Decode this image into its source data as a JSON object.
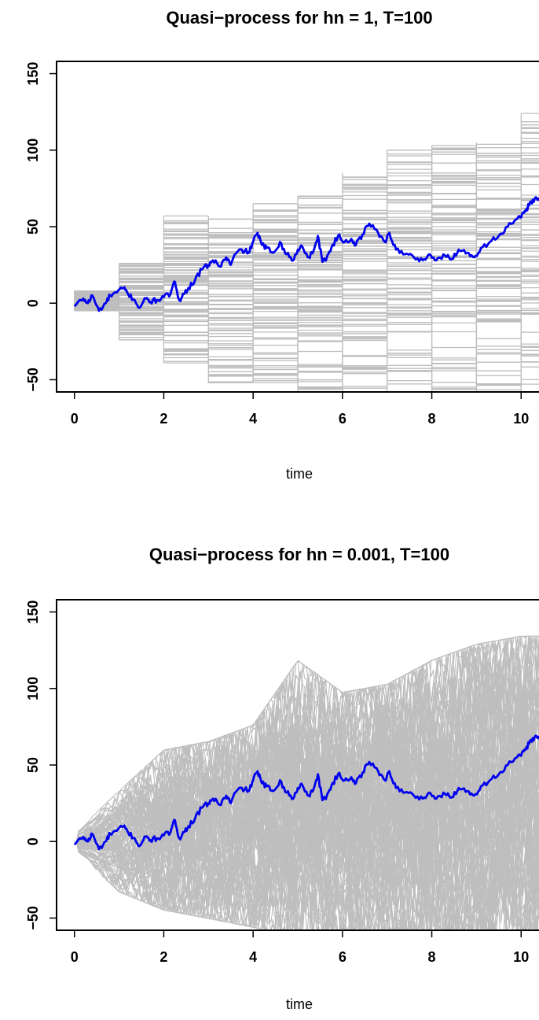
{
  "chart_data": [
    {
      "type": "line",
      "title": "Quasi−process for hn = 1, T=100",
      "xlabel": "time",
      "ylabel": "",
      "xlim": [
        -0.4,
        10.4
      ],
      "ylim": [
        -58,
        158
      ],
      "xticks": [
        "0",
        "2",
        "4",
        "6",
        "8",
        "10"
      ],
      "yticks": [
        "−50",
        "0",
        "50",
        "100",
        "150"
      ],
      "grid": false,
      "background_paths": {
        "name": "",
        "color": "#bebebe",
        "style": "step",
        "count": 100,
        "step_width": 1,
        "envelope_by_step": [
          {
            "t": 0,
            "min": -5,
            "max": 8
          },
          {
            "t": 1,
            "min": -24,
            "max": 26
          },
          {
            "t": 2,
            "min": -39,
            "max": 57
          },
          {
            "t": 3,
            "min": -52,
            "max": 55
          },
          {
            "t": 4,
            "min": -52,
            "max": 65
          },
          {
            "t": 5,
            "min": -60,
            "max": 70
          },
          {
            "t": 6,
            "min": -60,
            "max": 85
          },
          {
            "t": 7,
            "min": -60,
            "max": 100
          },
          {
            "t": 8,
            "min": -60,
            "max": 103
          },
          {
            "t": 9,
            "min": -60,
            "max": 105
          },
          {
            "t": 10,
            "min": -60,
            "max": 124
          }
        ]
      },
      "highlight_path": {
        "name": "",
        "color": "#0000ee",
        "x": [
          0,
          0.2,
          0.3,
          0.4,
          0.55,
          0.7,
          0.8,
          0.95,
          1.1,
          1.2,
          1.35,
          1.45,
          1.6,
          1.7,
          1.85,
          2.0,
          2.15,
          2.25,
          2.35,
          2.45,
          2.55,
          2.7,
          2.85,
          3.0,
          3.1,
          3.25,
          3.4,
          3.5,
          3.6,
          3.75,
          3.9,
          4.0,
          4.1,
          4.2,
          4.3,
          4.45,
          4.6,
          4.75,
          4.9,
          5.0,
          5.1,
          5.25,
          5.35,
          5.45,
          5.55,
          5.65,
          5.75,
          5.9,
          6.05,
          6.2,
          6.3,
          6.45,
          6.6,
          6.8,
          6.95,
          7.05,
          7.2,
          7.4,
          7.6,
          7.8,
          7.95,
          8.1,
          8.3,
          8.45,
          8.6,
          8.8,
          8.95,
          9.1,
          9.3,
          9.5,
          9.7,
          9.9,
          10.0,
          10.1,
          10.2,
          10.3,
          10.4
        ],
        "y": [
          -2,
          3,
          0,
          5,
          -5,
          0,
          5,
          7,
          10,
          6,
          2,
          -3,
          3,
          1,
          2,
          4,
          6,
          14,
          2,
          6,
          10,
          15,
          22,
          25,
          28,
          24,
          30,
          25,
          32,
          35,
          33,
          40,
          46,
          38,
          36,
          33,
          40,
          32,
          28,
          35,
          37,
          30,
          34,
          44,
          27,
          30,
          36,
          44,
          40,
          42,
          38,
          45,
          52,
          46,
          40,
          46,
          35,
          32,
          30,
          28,
          32,
          28,
          31,
          29,
          35,
          33,
          30,
          36,
          40,
          44,
          50,
          55,
          56,
          60,
          66,
          68,
          69
        ]
      }
    },
    {
      "type": "line",
      "title": "Quasi−process for hn = 0.001, T=100",
      "xlabel": "time",
      "ylabel": "",
      "xlim": [
        -0.4,
        10.4
      ],
      "ylim": [
        -58,
        158
      ],
      "xticks": [
        "0",
        "2",
        "4",
        "6",
        "8",
        "10"
      ],
      "yticks": [
        "−50",
        "0",
        "50",
        "100",
        "150"
      ],
      "grid": false,
      "background_paths": {
        "name": "",
        "color": "#bebebe",
        "style": "continuous",
        "count": 100,
        "envelope": [
          {
            "t": 0,
            "min": -5,
            "max": 5
          },
          {
            "t": 1,
            "min": -30,
            "max": 30
          },
          {
            "t": 2,
            "min": -40,
            "max": 55
          },
          {
            "t": 3,
            "min": -45,
            "max": 60
          },
          {
            "t": 4,
            "min": -50,
            "max": 70
          },
          {
            "t": 5,
            "min": -55,
            "max": 110
          },
          {
            "t": 6,
            "min": -58,
            "max": 90
          },
          {
            "t": 7,
            "min": -58,
            "max": 95
          },
          {
            "t": 8,
            "min": -58,
            "max": 110
          },
          {
            "t": 9,
            "min": -58,
            "max": 120
          },
          {
            "t": 10,
            "min": -58,
            "max": 125
          }
        ]
      },
      "highlight_path": {
        "name": "",
        "color": "#0000ee",
        "x": [
          0,
          0.2,
          0.3,
          0.4,
          0.55,
          0.7,
          0.8,
          0.95,
          1.1,
          1.2,
          1.35,
          1.45,
          1.6,
          1.7,
          1.85,
          2.0,
          2.15,
          2.25,
          2.35,
          2.45,
          2.55,
          2.7,
          2.85,
          3.0,
          3.1,
          3.25,
          3.4,
          3.5,
          3.6,
          3.75,
          3.9,
          4.0,
          4.1,
          4.2,
          4.3,
          4.45,
          4.6,
          4.75,
          4.9,
          5.0,
          5.1,
          5.25,
          5.35,
          5.45,
          5.55,
          5.65,
          5.75,
          5.9,
          6.05,
          6.2,
          6.3,
          6.45,
          6.6,
          6.8,
          6.95,
          7.05,
          7.2,
          7.4,
          7.6,
          7.8,
          7.95,
          8.1,
          8.3,
          8.45,
          8.6,
          8.8,
          8.95,
          9.1,
          9.3,
          9.5,
          9.7,
          9.9,
          10.0,
          10.1,
          10.2,
          10.3,
          10.4
        ],
        "y": [
          -2,
          3,
          0,
          5,
          -5,
          0,
          5,
          7,
          10,
          6,
          2,
          -3,
          3,
          1,
          2,
          4,
          6,
          14,
          2,
          6,
          10,
          15,
          22,
          25,
          28,
          24,
          30,
          25,
          32,
          35,
          33,
          40,
          46,
          38,
          36,
          33,
          40,
          32,
          28,
          35,
          37,
          30,
          34,
          44,
          27,
          30,
          36,
          44,
          40,
          42,
          38,
          45,
          52,
          46,
          40,
          46,
          35,
          32,
          30,
          28,
          32,
          28,
          31,
          29,
          35,
          33,
          30,
          36,
          40,
          44,
          50,
          55,
          56,
          60,
          66,
          68,
          69
        ]
      }
    }
  ]
}
